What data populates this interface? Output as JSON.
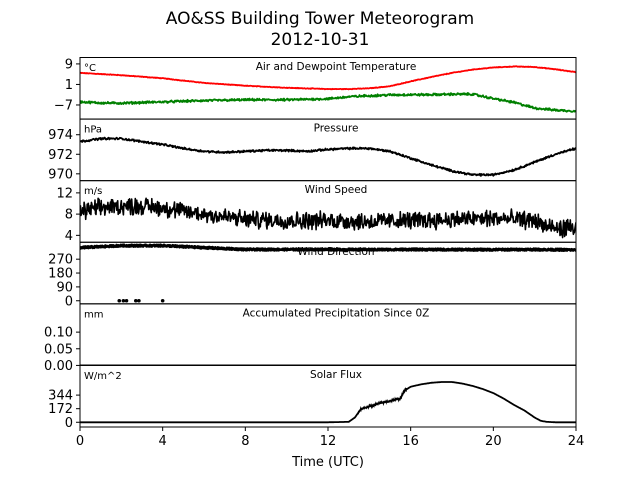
{
  "title": "AO&SS Building Tower Meteorogram",
  "subtitle": "2012-10-31",
  "chart_data": {
    "type": "line",
    "xlabel": "Time (UTC)",
    "xlim": [
      0,
      24
    ],
    "xticks": [
      "0",
      "4",
      "8",
      "12",
      "16",
      "20",
      "24"
    ],
    "panels": [
      {
        "key": "temperature",
        "title": "Air and Dewpoint Temperature",
        "unit": "°C",
        "ylim": [
          -12.5,
          11.5
        ],
        "yticks": [
          {
            "v": 9,
            "label": "9"
          },
          {
            "v": 1,
            "label": "1"
          },
          {
            "v": -7,
            "label": "−7"
          }
        ],
        "series": [
          {
            "style": "line",
            "color": "#ff0000",
            "noise": 0.1,
            "x": [
              0,
              2,
              4,
              6,
              8,
              10,
              12,
              13,
              14,
              15,
              16,
              17,
              18,
              19,
              20,
              21,
              22,
              23,
              24
            ],
            "y": [
              5.5,
              4.6,
              3.4,
              1.6,
              0.5,
              -0.3,
              -0.8,
              -0.8,
              -0.5,
              0.3,
              2.2,
              3.9,
              5.5,
              6.8,
              7.6,
              8.0,
              7.8,
              6.9,
              5.8
            ]
          },
          {
            "style": "line",
            "color": "#008000",
            "noise": 0.35,
            "x": [
              0,
              1,
              2,
              4,
              6,
              8,
              10,
              12,
              13,
              14,
              15,
              16,
              17,
              18,
              19,
              20,
              21,
              22,
              23,
              24
            ],
            "y": [
              -5.8,
              -6.2,
              -6.3,
              -5.8,
              -5.3,
              -5.0,
              -5.0,
              -4.6,
              -3.8,
              -3.4,
              -3.1,
              -3.0,
              -3.0,
              -2.8,
              -2.8,
              -4.5,
              -6.0,
              -8.2,
              -9.0,
              -9.4
            ]
          }
        ]
      },
      {
        "key": "pressure",
        "title": "Pressure",
        "unit": "hPa",
        "ylim": [
          969.3,
          975.6
        ],
        "yticks": [
          {
            "v": 974,
            "label": "974"
          },
          {
            "v": 972,
            "label": "972"
          },
          {
            "v": 970,
            "label": "970"
          }
        ],
        "series": [
          {
            "style": "line",
            "color": "#000000",
            "noise": 0.08,
            "x": [
              0,
              1,
              2,
              3,
              4,
              5,
              6,
              7,
              8,
              9,
              10,
              11,
              12,
              13,
              14,
              15,
              16,
              17,
              18,
              19,
              20,
              21,
              22,
              23,
              24
            ],
            "y": [
              973.3,
              973.6,
              973.6,
              973.3,
              973.0,
              972.6,
              972.3,
              972.2,
              972.3,
              972.4,
              972.4,
              972.3,
              972.5,
              972.6,
              972.6,
              972.3,
              971.6,
              970.9,
              970.3,
              969.9,
              969.9,
              970.4,
              971.2,
              972.0,
              972.6
            ]
          }
        ]
      },
      {
        "key": "wind_speed",
        "title": "Wind Speed",
        "unit": "m/s",
        "ylim": [
          2.7,
          14.3
        ],
        "yticks": [
          {
            "v": 12,
            "label": "12"
          },
          {
            "v": 8,
            "label": "8"
          },
          {
            "v": 4,
            "label": "4"
          }
        ],
        "series": [
          {
            "style": "line",
            "color": "#000000",
            "noise": 1.3,
            "x": [
              0,
              1,
              2,
              3,
              4,
              5,
              6,
              7,
              8,
              10,
              12,
              14,
              16,
              18,
              20,
              21,
              22,
              22.5,
              23,
              24
            ],
            "y": [
              8.5,
              9.2,
              9.5,
              9.5,
              9.2,
              8.5,
              8.0,
              7.5,
              7.0,
              6.8,
              6.8,
              6.6,
              6.8,
              7.0,
              7.2,
              7.0,
              6.8,
              5.8,
              5.2,
              5.5
            ]
          }
        ]
      },
      {
        "key": "wind_direction",
        "title": "Wind Direction",
        "unit": "",
        "ylim": [
          -20,
          380
        ],
        "yticks": [
          {
            "v": 270,
            "label": "270"
          },
          {
            "v": 180,
            "label": "180"
          },
          {
            "v": 90,
            "label": "90"
          },
          {
            "v": 0,
            "label": "0"
          }
        ],
        "series": [
          {
            "style": "band",
            "color": "#000000",
            "noise": 6,
            "x": [
              0,
              2,
              4,
              6,
              8,
              10,
              12,
              14,
              16,
              18,
              20,
              22,
              24
            ],
            "y": [
              345,
              358,
              358,
              345,
              333,
              333,
              333,
              332,
              333,
              332,
              332,
              333,
              330
            ]
          },
          {
            "style": "dots",
            "color": "#000000",
            "x": [
              1.9,
              2.1,
              2.25,
              2.7,
              2.85,
              4.0
            ],
            "y": [
              0,
              0,
              0,
              0,
              0,
              0
            ]
          }
        ]
      },
      {
        "key": "precipitation",
        "title": "Accumulated Precipitation Since 0Z",
        "unit": "mm",
        "ylim": [
          0,
          0.185
        ],
        "yticks": [
          {
            "v": 0.1,
            "label": "0.10"
          },
          {
            "v": 0.05,
            "label": "0.05"
          },
          {
            "v": 0,
            "label": "0.00"
          }
        ],
        "series": [
          {
            "style": "line",
            "color": "#000000",
            "noise": 0,
            "x": [
              0,
              24
            ],
            "y": [
              0,
              0
            ]
          }
        ]
      },
      {
        "key": "solar_flux",
        "title": "Solar Flux",
        "unit": "W/m^2",
        "ylim": [
          -60,
          720
        ],
        "yticks": [
          {
            "v": 344,
            "label": "344"
          },
          {
            "v": 172,
            "label": "172"
          },
          {
            "v": 0,
            "label": "0"
          }
        ],
        "series": [
          {
            "style": "line",
            "color": "#000000",
            "noise": 0,
            "x": [
              0,
              12,
              13.0,
              13.3,
              13.6,
              14.0,
              14.5,
              15.0,
              15.5,
              15.7,
              16.0,
              16.5,
              17.0,
              17.5,
              18.0,
              18.5,
              19.0,
              19.5,
              20.0,
              20.5,
              21.0,
              21.5,
              22.0,
              22.3,
              22.6,
              23.0,
              24.0
            ],
            "y": [
              0,
              0,
              5,
              60,
              170,
              200,
              240,
              270,
              300,
              400,
              450,
              480,
              500,
              510,
              510,
              490,
              460,
              420,
              370,
              300,
              220,
              150,
              60,
              18,
              5,
              0,
              0
            ]
          },
          {
            "style": "noise",
            "color": "#000000",
            "xmin": 13.4,
            "xmax": 15.8,
            "amp": 20
          }
        ]
      }
    ]
  }
}
